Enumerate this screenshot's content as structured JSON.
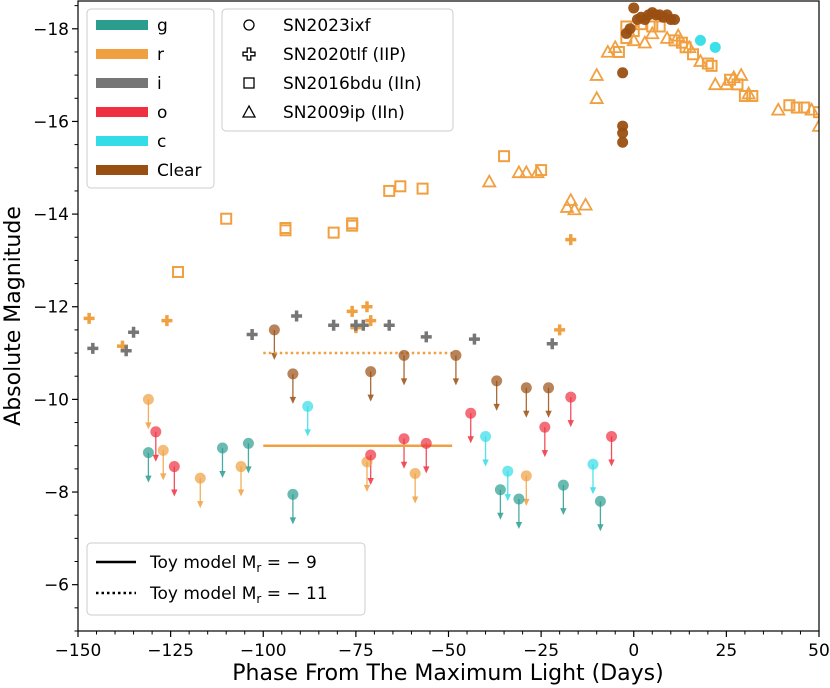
{
  "chart_data": {
    "type": "scatter",
    "xlabel": "Phase From The Maximum Light (Days)",
    "ylabel": "Absolute Magnitude",
    "xlim": [
      -150,
      50
    ],
    "ylim": [
      -5,
      -18.6
    ],
    "y_inverted": true,
    "grid": false,
    "x_ticks": [
      -150,
      -125,
      -100,
      -75,
      -50,
      -25,
      0,
      25,
      50
    ],
    "x_tick_labels": [
      "−150",
      "−125",
      "−100",
      "−75",
      "−50",
      "−25",
      "0",
      "25",
      "50"
    ],
    "y_ticks": [
      -18,
      -16,
      -14,
      -12,
      -10,
      -8,
      -6
    ],
    "y_tick_labels": [
      "−18",
      "−16",
      "−14",
      "−12",
      "−10",
      "−8",
      "−6"
    ],
    "filter_legend": {
      "placement": "top-left",
      "entries": [
        {
          "label": "g",
          "color": "#2a9d8f"
        },
        {
          "label": "r",
          "color": "#f0a040"
        },
        {
          "label": "i",
          "color": "#767676"
        },
        {
          "label": "o",
          "color": "#ee3040"
        },
        {
          "label": "c",
          "color": "#33dde8"
        },
        {
          "label": "Clear",
          "color": "#9a4f12"
        }
      ]
    },
    "object_legend": {
      "placement": "top-center",
      "entries": [
        {
          "label": "SN2023ixf",
          "marker": "circle"
        },
        {
          "label": "SN2020tlf (IIP)",
          "marker": "plus"
        },
        {
          "label": "SN2016bdu (IIn)",
          "marker": "square"
        },
        {
          "label": "SN2009ip (IIn)",
          "marker": "triangle"
        }
      ]
    },
    "model_legend": {
      "placement": "bottom-left",
      "entries": [
        {
          "label": "Toy model M",
          "subscript": "r",
          "value": " = − 9",
          "style": "solid"
        },
        {
          "label": "Toy model M",
          "subscript": "r",
          "value": " = − 11",
          "style": "dotted"
        }
      ]
    },
    "series": [
      {
        "name": "SN2020tlf (IIP)",
        "filter": "r",
        "marker": "plus",
        "points": [
          [
            -147,
            -11.75
          ],
          [
            -138,
            -11.15
          ],
          [
            -126,
            -11.7
          ],
          [
            -76,
            -11.9
          ],
          [
            -75,
            -11.55
          ],
          [
            -72,
            -12.0
          ],
          [
            -71,
            -11.7
          ],
          [
            -20,
            -11.5
          ],
          [
            -17,
            -13.45
          ]
        ]
      },
      {
        "name": "SN2020tlf (IIP)",
        "filter": "i",
        "marker": "plus",
        "points": [
          [
            -146,
            -11.1
          ],
          [
            -137,
            -11.05
          ],
          [
            -135,
            -11.45
          ],
          [
            -103,
            -11.4
          ],
          [
            -91,
            -11.8
          ],
          [
            -81,
            -11.6
          ],
          [
            -75,
            -11.6
          ],
          [
            -73,
            -11.6
          ],
          [
            -66,
            -11.6
          ],
          [
            -56,
            -11.35
          ],
          [
            -43,
            -11.3
          ],
          [
            -22,
            -11.2
          ]
        ]
      },
      {
        "name": "SN2016bdu (IIn)",
        "filter": "r",
        "marker": "square",
        "points": [
          [
            -123,
            -12.75
          ],
          [
            -110,
            -13.9
          ],
          [
            -94,
            -13.65
          ],
          [
            -94,
            -13.7
          ],
          [
            -81,
            -13.6
          ],
          [
            -76,
            -13.75
          ],
          [
            -76,
            -13.8
          ],
          [
            -66,
            -14.5
          ],
          [
            -63,
            -14.6
          ],
          [
            -57,
            -14.55
          ],
          [
            -35,
            -15.25
          ],
          [
            -25,
            -14.95
          ],
          [
            -4,
            -17.5
          ],
          [
            -2,
            -17.8
          ],
          [
            -2,
            -18.05
          ],
          [
            0,
            -17.95
          ],
          [
            2,
            -18.1
          ],
          [
            5,
            -18.05
          ],
          [
            7,
            -18.05
          ],
          [
            11,
            -17.75
          ],
          [
            13,
            -17.7
          ],
          [
            14,
            -17.6
          ],
          [
            16,
            -17.45
          ],
          [
            20,
            -17.25
          ],
          [
            21,
            -17.2
          ],
          [
            26,
            -16.9
          ],
          [
            28,
            -16.8
          ],
          [
            30,
            -16.55
          ],
          [
            32,
            -16.55
          ],
          [
            42,
            -16.35
          ],
          [
            44,
            -16.3
          ],
          [
            46,
            -16.3
          ],
          [
            50,
            -16.2
          ]
        ]
      },
      {
        "name": "SN2009ip (IIn)",
        "filter": "r",
        "marker": "triangle",
        "points": [
          [
            -39,
            -14.7
          ],
          [
            -31,
            -14.9
          ],
          [
            -29,
            -14.9
          ],
          [
            -26,
            -14.9
          ],
          [
            -18,
            -14.15
          ],
          [
            -17,
            -14.3
          ],
          [
            -16,
            -14.1
          ],
          [
            -13,
            -14.2
          ],
          [
            -10,
            -16.5
          ],
          [
            -10,
            -17.0
          ],
          [
            -7,
            -17.5
          ],
          [
            -5,
            -17.6
          ],
          [
            0,
            -17.75
          ],
          [
            3,
            -17.7
          ],
          [
            5,
            -17.9
          ],
          [
            9,
            -17.8
          ],
          [
            12,
            -17.85
          ],
          [
            15,
            -17.6
          ],
          [
            18,
            -17.3
          ],
          [
            22,
            -16.8
          ],
          [
            25,
            -16.8
          ],
          [
            27,
            -16.95
          ],
          [
            29,
            -17.0
          ],
          [
            31,
            -16.6
          ],
          [
            39,
            -16.25
          ],
          [
            48,
            -16.25
          ],
          [
            50,
            -15.9
          ]
        ]
      },
      {
        "name": "SN2023ixf",
        "filter": "Clear",
        "marker": "circle",
        "points": [
          [
            -3,
            -17.05
          ],
          [
            -3,
            -15.9
          ],
          [
            -3,
            -15.75
          ],
          [
            -3,
            -15.55
          ],
          [
            -2,
            -17.9
          ],
          [
            -1,
            -18.0
          ],
          [
            0,
            -18.45
          ],
          [
            1,
            -18.2
          ],
          [
            2,
            -18.25
          ],
          [
            3,
            -18.2
          ],
          [
            4,
            -18.3
          ],
          [
            5,
            -18.35
          ],
          [
            6,
            -18.3
          ],
          [
            7,
            -18.3
          ],
          [
            8,
            -18.25
          ],
          [
            9,
            -18.3
          ],
          [
            10,
            -18.2
          ],
          [
            11,
            -18.2
          ]
        ]
      },
      {
        "name": "SN2023ixf",
        "filter": "c",
        "marker": "circle",
        "points": [
          [
            18,
            -17.75
          ],
          [
            22,
            -17.6
          ]
        ]
      },
      {
        "name": "SN2023ixf",
        "filter": "g",
        "marker": "circle",
        "limit": true,
        "points": [
          [
            -131,
            -8.85
          ],
          [
            -111,
            -8.95
          ],
          [
            -104,
            -9.05
          ],
          [
            -92,
            -7.95
          ],
          [
            -36,
            -8.05
          ],
          [
            -31,
            -7.85
          ],
          [
            -19,
            -8.15
          ],
          [
            -9,
            -7.8
          ]
        ]
      },
      {
        "name": "SN2023ixf",
        "filter": "r",
        "marker": "circle",
        "limit": true,
        "points": [
          [
            -131,
            -10.0
          ],
          [
            -127,
            -8.9
          ],
          [
            -117,
            -8.3
          ],
          [
            -106,
            -8.55
          ],
          [
            -72,
            -8.65
          ],
          [
            -59,
            -8.4
          ],
          [
            -29,
            -8.35
          ]
        ]
      },
      {
        "name": "SN2023ixf",
        "filter": "o",
        "marker": "circle",
        "limit": true,
        "points": [
          [
            -129,
            -9.3
          ],
          [
            -124,
            -8.55
          ],
          [
            -71,
            -8.8
          ],
          [
            -62,
            -9.15
          ],
          [
            -56,
            -9.05
          ],
          [
            -44,
            -9.7
          ],
          [
            -24,
            -9.4
          ],
          [
            -17,
            -10.05
          ],
          [
            -6,
            -9.2
          ]
        ]
      },
      {
        "name": "SN2023ixf",
        "filter": "c",
        "marker": "circle",
        "limit": true,
        "points": [
          [
            -88,
            -9.85
          ],
          [
            -40,
            -9.2
          ],
          [
            -34,
            -8.45
          ],
          [
            -11,
            -8.6
          ]
        ]
      },
      {
        "name": "SN2023ixf",
        "filter": "Clear",
        "marker": "circle",
        "limit": true,
        "points": [
          [
            -97,
            -11.5
          ],
          [
            -92,
            -10.55
          ],
          [
            -71,
            -10.6
          ],
          [
            -62,
            -10.95
          ],
          [
            -48,
            -10.95
          ],
          [
            -37,
            -10.4
          ],
          [
            -29,
            -10.25
          ],
          [
            -23,
            -10.25
          ]
        ]
      }
    ],
    "toy_models": [
      {
        "name": "Toy model M_r = −9",
        "x": [
          -100,
          -49
        ],
        "y": -9,
        "filter": "r",
        "style": "solid"
      },
      {
        "name": "Toy model M_r = −11",
        "x": [
          -100,
          -49
        ],
        "y": -11,
        "filter": "r",
        "style": "dotted"
      }
    ]
  }
}
